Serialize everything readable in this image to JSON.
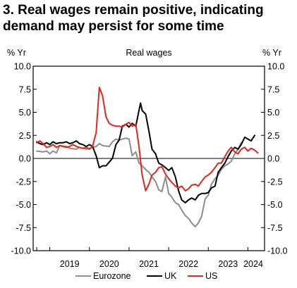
{
  "title_lines": [
    "3. Real wages remain positive, indicating",
    "demand may persist for some time"
  ],
  "chart_data": {
    "type": "line",
    "title": "Real wages",
    "ylabel_left": "% Yr",
    "ylabel_right": "% Yr",
    "ylim": [
      -10,
      10
    ],
    "yticks": [
      10.0,
      7.5,
      5.0,
      2.5,
      0.0,
      -2.5,
      -5.0,
      -7.5,
      -10.0
    ],
    "ytick_labels": [
      "10.0",
      "7.5",
      "5.0",
      "2.5",
      "0.0",
      "-2.5",
      "-5.0",
      "-7.5",
      "-10.0"
    ],
    "xlim": [
      2018.58,
      2024.42
    ],
    "year_ticks": [
      2019,
      2020,
      2021,
      2022,
      2023,
      2024
    ],
    "xtick_labels": [
      "2019",
      "2020",
      "2021",
      "2022",
      "2023",
      "2024"
    ],
    "legend_position": "bottom",
    "series": [
      {
        "name": "Eurozone",
        "color": "#8c8c8c",
        "points": [
          [
            2018.67,
            0.8
          ],
          [
            2018.83,
            0.7
          ],
          [
            2018.92,
            0.8
          ],
          [
            2019.0,
            0.5
          ],
          [
            2019.08,
            0.8
          ],
          [
            2019.17,
            0.6
          ],
          [
            2019.25,
            1.4
          ],
          [
            2019.42,
            1.3
          ],
          [
            2019.5,
            1.1
          ],
          [
            2019.67,
            1.0
          ],
          [
            2019.75,
            1.2
          ],
          [
            2019.83,
            1.1
          ],
          [
            2019.92,
            1.0
          ],
          [
            2020.0,
            1.1
          ],
          [
            2020.08,
            1.2
          ],
          [
            2020.17,
            1.3
          ],
          [
            2020.25,
            1.6
          ],
          [
            2020.33,
            1.4
          ],
          [
            2020.5,
            1.3
          ],
          [
            2020.58,
            1.8
          ],
          [
            2020.67,
            2.1
          ],
          [
            2020.75,
            2.0
          ],
          [
            2020.92,
            2.2
          ],
          [
            2021.0,
            2.1
          ],
          [
            2021.08,
            0.3
          ],
          [
            2021.17,
            0.7
          ],
          [
            2021.25,
            -0.5
          ],
          [
            2021.33,
            -0.8
          ],
          [
            2021.42,
            -1.2
          ],
          [
            2021.5,
            -1.5
          ],
          [
            2021.58,
            -2.0
          ],
          [
            2021.67,
            -2.5
          ],
          [
            2021.75,
            -3.4
          ],
          [
            2021.83,
            -3.6
          ],
          [
            2021.92,
            -2.0
          ],
          [
            2022.0,
            -3.8
          ],
          [
            2022.08,
            -4.2
          ],
          [
            2022.17,
            -4.8
          ],
          [
            2022.25,
            -5.0
          ],
          [
            2022.33,
            -5.6
          ],
          [
            2022.42,
            -6.2
          ],
          [
            2022.5,
            -6.5
          ],
          [
            2022.58,
            -7.0
          ],
          [
            2022.67,
            -7.4
          ],
          [
            2022.75,
            -7.0
          ],
          [
            2022.83,
            -6.3
          ],
          [
            2022.92,
            -4.4
          ],
          [
            2023.0,
            -4.0
          ],
          [
            2023.08,
            -2.8
          ],
          [
            2023.17,
            -2.2
          ],
          [
            2023.25,
            -1.8
          ],
          [
            2023.33,
            -1.2
          ],
          [
            2023.42,
            -0.8
          ],
          [
            2023.5,
            -0.6
          ],
          [
            2023.58,
            -0.3
          ],
          [
            2023.67,
            0.5
          ],
          [
            2023.75,
            1.0
          ],
          [
            2023.83,
            1.7
          ]
        ]
      },
      {
        "name": "UK",
        "color": "#000000",
        "points": [
          [
            2018.67,
            1.8
          ],
          [
            2018.75,
            1.6
          ],
          [
            2018.83,
            1.5
          ],
          [
            2018.92,
            1.7
          ],
          [
            2019.0,
            1.5
          ],
          [
            2019.08,
            1.8
          ],
          [
            2019.17,
            1.6
          ],
          [
            2019.25,
            1.7
          ],
          [
            2019.33,
            1.7
          ],
          [
            2019.42,
            1.8
          ],
          [
            2019.5,
            1.6
          ],
          [
            2019.58,
            1.7
          ],
          [
            2019.67,
            1.9
          ],
          [
            2019.75,
            1.6
          ],
          [
            2019.83,
            1.5
          ],
          [
            2019.92,
            1.3
          ],
          [
            2020.0,
            1.5
          ],
          [
            2020.08,
            1.3
          ],
          [
            2020.17,
            0.3
          ],
          [
            2020.25,
            -1.0
          ],
          [
            2020.33,
            -0.8
          ],
          [
            2020.42,
            -0.8
          ],
          [
            2020.5,
            -0.4
          ],
          [
            2020.58,
            0.0
          ],
          [
            2020.67,
            1.5
          ],
          [
            2020.75,
            2.0
          ],
          [
            2020.83,
            3.5
          ],
          [
            2020.92,
            3.7
          ],
          [
            2021.0,
            3.4
          ],
          [
            2021.08,
            3.8
          ],
          [
            2021.17,
            3.5
          ],
          [
            2021.25,
            5.2
          ],
          [
            2021.29,
            6.0
          ],
          [
            2021.33,
            5.2
          ],
          [
            2021.42,
            4.8
          ],
          [
            2021.5,
            3.0
          ],
          [
            2021.58,
            1.0
          ],
          [
            2021.67,
            0.5
          ],
          [
            2021.75,
            -0.5
          ],
          [
            2021.83,
            -0.7
          ],
          [
            2021.92,
            -1.0
          ],
          [
            2022.0,
            -1.3
          ],
          [
            2022.08,
            -1.0
          ],
          [
            2022.17,
            -2.0
          ],
          [
            2022.25,
            -3.5
          ],
          [
            2022.33,
            -4.5
          ],
          [
            2022.42,
            -4.8
          ],
          [
            2022.5,
            -4.5
          ],
          [
            2022.58,
            -4.3
          ],
          [
            2022.67,
            -4.5
          ],
          [
            2022.75,
            -4.0
          ],
          [
            2022.83,
            -3.8
          ],
          [
            2022.92,
            -3.8
          ],
          [
            2023.0,
            -3.7
          ],
          [
            2023.08,
            -3.2
          ],
          [
            2023.17,
            -3.0
          ],
          [
            2023.25,
            -1.5
          ],
          [
            2023.33,
            -1.0
          ],
          [
            2023.42,
            -0.5
          ],
          [
            2023.5,
            0.2
          ],
          [
            2023.58,
            0.8
          ],
          [
            2023.67,
            1.2
          ],
          [
            2023.75,
            1.0
          ],
          [
            2023.83,
            1.5
          ],
          [
            2023.92,
            2.3
          ],
          [
            2024.0,
            2.1
          ],
          [
            2024.08,
            1.9
          ],
          [
            2024.17,
            2.5
          ]
        ]
      },
      {
        "name": "US",
        "color": "#e8231a",
        "points": [
          [
            2018.67,
            1.7
          ],
          [
            2018.75,
            1.9
          ],
          [
            2018.83,
            1.6
          ],
          [
            2018.92,
            1.2
          ],
          [
            2019.0,
            1.3
          ],
          [
            2019.08,
            1.5
          ],
          [
            2019.17,
            1.2
          ],
          [
            2019.25,
            1.4
          ],
          [
            2019.33,
            1.3
          ],
          [
            2019.42,
            1.2
          ],
          [
            2019.5,
            1.3
          ],
          [
            2019.58,
            1.5
          ],
          [
            2019.67,
            1.3
          ],
          [
            2019.75,
            1.2
          ],
          [
            2019.83,
            1.1
          ],
          [
            2019.92,
            1.2
          ],
          [
            2020.0,
            1.0
          ],
          [
            2020.08,
            1.3
          ],
          [
            2020.17,
            2.8
          ],
          [
            2020.25,
            7.7
          ],
          [
            2020.33,
            6.8
          ],
          [
            2020.42,
            4.5
          ],
          [
            2020.5,
            3.8
          ],
          [
            2020.58,
            3.6
          ],
          [
            2020.67,
            3.5
          ],
          [
            2020.75,
            3.5
          ],
          [
            2020.83,
            3.4
          ],
          [
            2020.92,
            3.7
          ],
          [
            2021.0,
            3.9
          ],
          [
            2021.08,
            3.5
          ],
          [
            2021.17,
            3.7
          ],
          [
            2021.25,
            1.3
          ],
          [
            2021.33,
            -1.8
          ],
          [
            2021.42,
            -3.5
          ],
          [
            2021.5,
            -2.8
          ],
          [
            2021.58,
            -1.8
          ],
          [
            2021.67,
            -1.5
          ],
          [
            2021.75,
            -1.0
          ],
          [
            2021.83,
            -0.9
          ],
          [
            2021.92,
            -1.7
          ],
          [
            2022.0,
            -2.2
          ],
          [
            2022.08,
            -2.6
          ],
          [
            2022.17,
            -3.0
          ],
          [
            2022.25,
            -3.2
          ],
          [
            2022.33,
            -3.0
          ],
          [
            2022.42,
            -3.5
          ],
          [
            2022.5,
            -3.3
          ],
          [
            2022.58,
            -2.9
          ],
          [
            2022.67,
            -2.8
          ],
          [
            2022.75,
            -3.0
          ],
          [
            2022.83,
            -2.5
          ],
          [
            2022.92,
            -2.0
          ],
          [
            2023.0,
            -1.8
          ],
          [
            2023.08,
            -1.5
          ],
          [
            2023.17,
            -1.0
          ],
          [
            2023.25,
            -0.5
          ],
          [
            2023.33,
            -0.5
          ],
          [
            2023.42,
            0.2
          ],
          [
            2023.5,
            0.8
          ],
          [
            2023.58,
            1.2
          ],
          [
            2023.67,
            0.7
          ],
          [
            2023.75,
            0.5
          ],
          [
            2023.83,
            1.0
          ],
          [
            2023.92,
            1.2
          ],
          [
            2024.0,
            0.8
          ],
          [
            2024.08,
            1.1
          ],
          [
            2024.17,
            0.9
          ],
          [
            2024.25,
            0.6
          ]
        ]
      }
    ]
  }
}
